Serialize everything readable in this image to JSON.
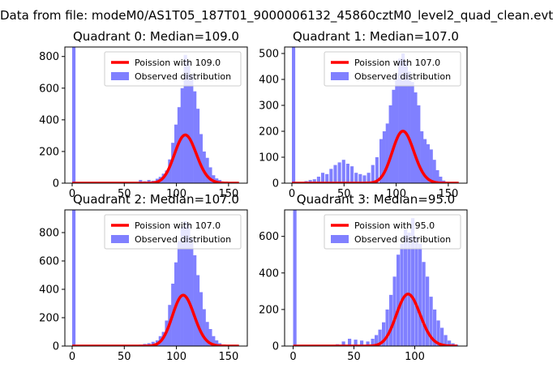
{
  "figure": {
    "suptitle": "Data from file: modeM0/AS1T05_187T01_9000006132_45860cztM0_level2_quad_clean.evt"
  },
  "chart_data": [
    {
      "type": "bar",
      "title": "Quadrant 0: Median=109.0",
      "xlim": [
        -7,
        168
      ],
      "ylim": [
        0,
        860
      ],
      "xticks": [
        0,
        50,
        100,
        150
      ],
      "yticks": [
        0,
        200,
        400,
        600,
        800
      ],
      "legend_position": "upper right",
      "series": [
        {
          "name": "Observed distribution",
          "kind": "histogram",
          "color": "#8080ff",
          "bin_width": 3.2,
          "x": [
            0,
            64,
            68,
            72,
            76,
            80,
            83,
            86,
            89,
            92,
            95,
            98,
            101,
            104,
            107,
            110,
            113,
            116,
            119,
            122,
            125,
            128,
            131,
            134,
            137,
            140,
            143,
            146,
            149
          ],
          "values": [
            860,
            20,
            12,
            20,
            15,
            28,
            40,
            60,
            80,
            150,
            255,
            370,
            480,
            600,
            810,
            770,
            685,
            580,
            470,
            310,
            200,
            160,
            100,
            50,
            30,
            20,
            10,
            5,
            3
          ]
        },
        {
          "name": "Poission with 109.0",
          "kind": "poisson",
          "color": "#ff0000",
          "mean": 109.0,
          "scale": 7970,
          "x_range": [
            0,
            160
          ]
        }
      ]
    },
    {
      "type": "bar",
      "title": "Quadrant 1: Median=107.0",
      "xlim": [
        -7,
        168
      ],
      "ylim": [
        0,
        525
      ],
      "xticks": [
        0,
        50,
        100,
        150
      ],
      "yticks": [
        0,
        100,
        200,
        300,
        400,
        500
      ],
      "legend_position": "upper right",
      "series": [
        {
          "name": "Observed distribution",
          "kind": "histogram",
          "color": "#8080ff",
          "bin_width": 3.2,
          "x": [
            0,
            8,
            12,
            16,
            20,
            24,
            28,
            32,
            36,
            40,
            44,
            48,
            52,
            56,
            60,
            64,
            68,
            72,
            76,
            80,
            84,
            87,
            90,
            93,
            96,
            99,
            102,
            105,
            108,
            111,
            114,
            117,
            120,
            123,
            126,
            129,
            132,
            135,
            138,
            141,
            144,
            147
          ],
          "values": [
            525,
            5,
            8,
            12,
            15,
            25,
            40,
            35,
            55,
            70,
            80,
            90,
            75,
            65,
            40,
            35,
            30,
            40,
            70,
            100,
            170,
            200,
            230,
            300,
            360,
            420,
            480,
            500,
            470,
            430,
            390,
            350,
            300,
            200,
            170,
            150,
            130,
            90,
            50,
            25,
            10,
            5
          ]
        },
        {
          "name": "Poission with 107.0",
          "kind": "poisson",
          "color": "#ff0000",
          "mean": 107.0,
          "scale": 5200,
          "x_range": [
            0,
            160
          ]
        }
      ]
    },
    {
      "type": "bar",
      "title": "Quadrant 2: Median=107.0",
      "xlim": [
        -7,
        168
      ],
      "ylim": [
        0,
        960
      ],
      "xticks": [
        0,
        50,
        100,
        150
      ],
      "yticks": [
        0,
        200,
        400,
        600,
        800
      ],
      "legend_position": "upper right",
      "series": [
        {
          "name": "Observed distribution",
          "kind": "histogram",
          "color": "#8080ff",
          "bin_width": 3.2,
          "x": [
            0,
            60,
            64,
            68,
            72,
            76,
            80,
            83,
            86,
            89,
            92,
            95,
            98,
            101,
            104,
            107,
            110,
            113,
            116,
            119,
            122,
            125,
            128,
            131,
            134,
            137,
            140,
            143,
            146
          ],
          "values": [
            960,
            8,
            10,
            15,
            20,
            30,
            40,
            70,
            100,
            180,
            290,
            440,
            590,
            740,
            840,
            880,
            860,
            760,
            640,
            500,
            380,
            260,
            170,
            120,
            70,
            40,
            20,
            10,
            5
          ]
        },
        {
          "name": "Poission with 107.0",
          "kind": "poisson",
          "color": "#ff0000",
          "mean": 107.0,
          "scale": 9300,
          "x_range": [
            0,
            160
          ]
        }
      ]
    },
    {
      "type": "bar",
      "title": "Quadrant 3: Median=95.0",
      "xlim": [
        -7,
        143
      ],
      "ylim": [
        0,
        745
      ],
      "xticks": [
        0,
        50,
        100
      ],
      "yticks": [
        0,
        200,
        400,
        600
      ],
      "legend_position": "upper right",
      "series": [
        {
          "name": "Observed distribution",
          "kind": "histogram",
          "color": "#8080ff",
          "bin_width": 2.8,
          "x": [
            0,
            30,
            35,
            40,
            45,
            50,
            55,
            60,
            64,
            67,
            70,
            73,
            76,
            79,
            82,
            85,
            88,
            91,
            94,
            97,
            100,
            103,
            106,
            109,
            112,
            115,
            118,
            121,
            124,
            127,
            130,
            133
          ],
          "values": [
            745,
            5,
            10,
            25,
            40,
            35,
            30,
            25,
            40,
            60,
            90,
            130,
            200,
            280,
            380,
            500,
            560,
            640,
            620,
            700,
            600,
            560,
            460,
            380,
            270,
            200,
            140,
            100,
            60,
            30,
            15,
            8
          ]
        },
        {
          "name": "Poission with 95.0",
          "kind": "poisson",
          "color": "#ff0000",
          "mean": 95.0,
          "scale": 6950,
          "x_range": [
            0,
            135
          ]
        }
      ]
    }
  ]
}
